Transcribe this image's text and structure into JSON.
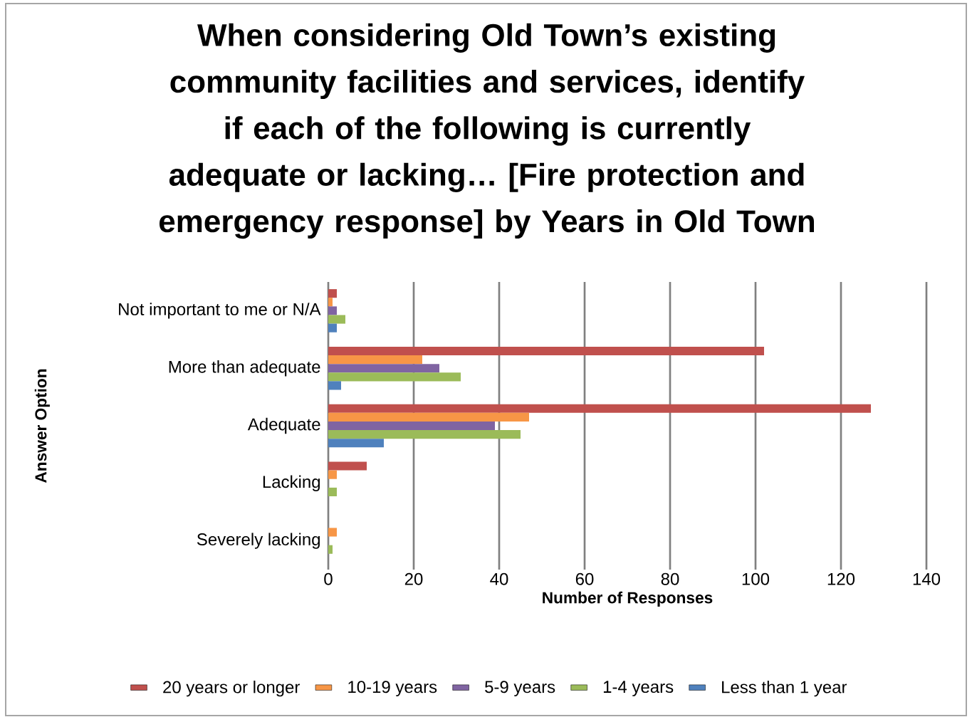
{
  "chart_data": {
    "type": "bar",
    "orientation": "horizontal",
    "title": "When considering Old Town’s existing community facilities and services, identify if each of the following is currently adequate or lacking… [Fire protection and emergency response] by Years in Old Town",
    "xlabel": "Number of Responses",
    "ylabel": "Answer Option",
    "categories": [
      "Not important to me or N/A",
      "More than adequate",
      "Adequate",
      "Lacking",
      "Severely lacking"
    ],
    "series": [
      {
        "name": "20 years or longer",
        "color": "#c0504d",
        "values": [
          2,
          102,
          127,
          9,
          0
        ]
      },
      {
        "name": "10-19 years",
        "color": "#f79646",
        "values": [
          1,
          22,
          47,
          2,
          2
        ]
      },
      {
        "name": "5-9 years",
        "color": "#8064a2",
        "values": [
          2,
          26,
          39,
          0,
          0
        ]
      },
      {
        "name": "1-4 years",
        "color": "#9bbb59",
        "values": [
          4,
          31,
          45,
          2,
          1
        ]
      },
      {
        "name": "Less than 1 year",
        "color": "#4f81bd",
        "values": [
          2,
          3,
          13,
          0,
          0
        ]
      }
    ],
    "xlim": [
      0,
      140
    ],
    "xticks": [
      0,
      20,
      40,
      60,
      80,
      100,
      120,
      140
    ],
    "grid": "x",
    "legend": "bottom"
  }
}
